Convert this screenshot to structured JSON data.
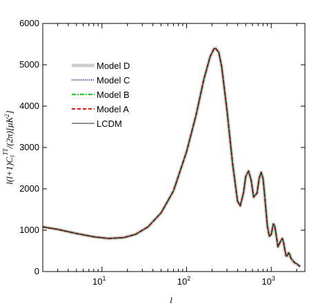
{
  "chart_data": {
    "type": "line",
    "xlabel": "l",
    "ylabel": "l(l+1)C_l^TT/(2π)[μK²]",
    "xscale": "log",
    "xlim": [
      2,
      2500
    ],
    "ylim": [
      0,
      6000
    ],
    "x_ticks": [
      {
        "value": 10,
        "base": "10",
        "exp": "1"
      },
      {
        "value": 100,
        "base": "10",
        "exp": "2"
      },
      {
        "value": 1000,
        "base": "10",
        "exp": "3"
      }
    ],
    "y_ticks": [
      "0",
      "1000",
      "2000",
      "3000",
      "4000",
      "5000",
      "6000"
    ],
    "y_tick_values": [
      0,
      1000,
      2000,
      3000,
      4000,
      5000,
      6000
    ],
    "grid": false,
    "legend_position": "upper-left",
    "x": [
      2,
      3,
      5,
      8,
      12,
      18,
      25,
      35,
      50,
      70,
      100,
      130,
      160,
      190,
      210,
      220,
      240,
      260,
      300,
      350,
      400,
      430,
      470,
      500,
      540,
      580,
      620,
      680,
      720,
      760,
      800,
      840,
      900,
      950,
      1000,
      1060,
      1100,
      1150,
      1200,
      1280,
      1350,
      1400,
      1450,
      1500,
      1550,
      1600,
      1650,
      1700,
      1800,
      1900,
      2000,
      2100,
      2200
    ],
    "series": [
      {
        "name": "Model D",
        "color": "#cccccc",
        "style": "solid-thick",
        "values": [
          1080,
          1020,
          920,
          840,
          800,
          820,
          900,
          1080,
          1420,
          1950,
          2900,
          3800,
          4650,
          5200,
          5380,
          5400,
          5300,
          4950,
          3900,
          2600,
          1700,
          1590,
          1900,
          2300,
          2430,
          2200,
          1800,
          1900,
          2250,
          2400,
          2250,
          1800,
          1100,
          850,
          900,
          1150,
          1100,
          850,
          600,
          720,
          800,
          700,
          520,
          380,
          380,
          450,
          420,
          330,
          260,
          210,
          190,
          150,
          120
        ]
      },
      {
        "name": "Model C",
        "color": "#3344cc",
        "style": "dotted",
        "values": [
          1080,
          1020,
          920,
          840,
          800,
          820,
          900,
          1080,
          1420,
          1950,
          2900,
          3800,
          4650,
          5200,
          5380,
          5400,
          5300,
          4950,
          3900,
          2600,
          1700,
          1590,
          1900,
          2300,
          2430,
          2200,
          1800,
          1900,
          2250,
          2400,
          2250,
          1800,
          1100,
          850,
          900,
          1150,
          1100,
          850,
          600,
          720,
          800,
          700,
          520,
          380,
          380,
          450,
          420,
          330,
          260,
          210,
          190,
          150,
          120
        ]
      },
      {
        "name": "Model B",
        "color": "#22cc22",
        "style": "dashdot",
        "values": [
          1080,
          1020,
          920,
          840,
          800,
          820,
          900,
          1080,
          1420,
          1950,
          2900,
          3800,
          4650,
          5200,
          5380,
          5400,
          5300,
          4950,
          3900,
          2600,
          1700,
          1590,
          1900,
          2300,
          2430,
          2200,
          1800,
          1900,
          2250,
          2400,
          2250,
          1800,
          1100,
          850,
          900,
          1150,
          1100,
          850,
          600,
          720,
          800,
          700,
          520,
          380,
          380,
          450,
          420,
          330,
          260,
          210,
          190,
          150,
          120
        ]
      },
      {
        "name": "Model A",
        "color": "#ee1111",
        "style": "dashed",
        "values": [
          1080,
          1020,
          920,
          840,
          800,
          820,
          900,
          1080,
          1420,
          1950,
          2900,
          3800,
          4650,
          5200,
          5380,
          5400,
          5300,
          4950,
          3900,
          2600,
          1700,
          1590,
          1900,
          2300,
          2430,
          2200,
          1800,
          1900,
          2250,
          2400,
          2250,
          1800,
          1100,
          850,
          900,
          1150,
          1100,
          850,
          600,
          720,
          800,
          700,
          520,
          380,
          380,
          450,
          420,
          330,
          260,
          210,
          190,
          150,
          120
        ]
      },
      {
        "name": "LCDM",
        "color": "#222222",
        "style": "solid",
        "values": [
          1080,
          1020,
          920,
          840,
          800,
          820,
          900,
          1080,
          1420,
          1950,
          2900,
          3800,
          4650,
          5200,
          5380,
          5400,
          5300,
          4950,
          3900,
          2600,
          1700,
          1590,
          1900,
          2300,
          2430,
          2200,
          1800,
          1900,
          2250,
          2400,
          2250,
          1800,
          1100,
          850,
          900,
          1150,
          1100,
          850,
          600,
          720,
          800,
          700,
          520,
          380,
          380,
          450,
          420,
          330,
          260,
          210,
          190,
          150,
          120
        ]
      }
    ]
  }
}
